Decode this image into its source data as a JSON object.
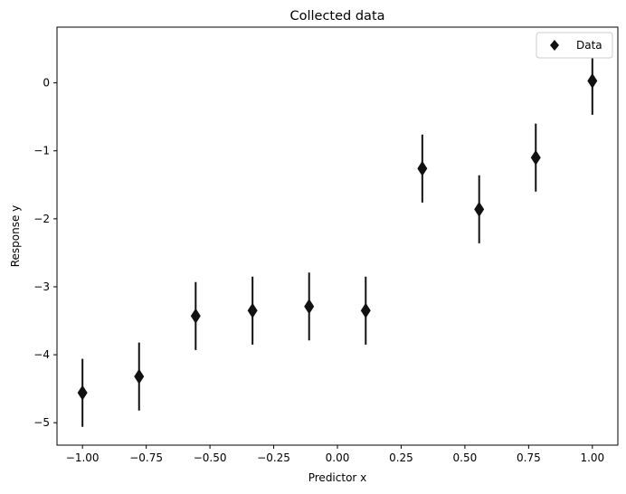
{
  "chart_data": {
    "type": "scatter",
    "title": "Collected data",
    "xlabel": "Predictor x",
    "ylabel": "Response y",
    "xlim": [
      -1.1,
      1.1
    ],
    "ylim": [
      -5.33,
      0.82
    ],
    "xticks": [
      -1.0,
      -0.75,
      -0.5,
      -0.25,
      0.0,
      0.25,
      0.5,
      0.75,
      1.0
    ],
    "xtick_labels": [
      "−1.00",
      "−0.75",
      "−0.50",
      "−0.25",
      "0.00",
      "0.25",
      "0.50",
      "0.75",
      "1.00"
    ],
    "yticks": [
      -5,
      -4,
      -3,
      -2,
      -1,
      0
    ],
    "ytick_labels": [
      "−5",
      "−4",
      "−3",
      "−2",
      "−1",
      "0"
    ],
    "grid": false,
    "legend_position": "top-right",
    "series": [
      {
        "name": "Data",
        "marker": "diamond",
        "color": "#111111",
        "x": [
          -1.0,
          -0.778,
          -0.556,
          -0.333,
          -0.111,
          0.111,
          0.333,
          0.556,
          0.778,
          1.0
        ],
        "y": [
          -4.56,
          -4.32,
          -3.43,
          -3.35,
          -3.29,
          -3.35,
          -1.26,
          -1.86,
          -1.1,
          0.03
        ],
        "yerr": [
          0.5,
          0.5,
          0.5,
          0.5,
          0.5,
          0.5,
          0.5,
          0.5,
          0.5,
          0.5
        ]
      }
    ]
  }
}
